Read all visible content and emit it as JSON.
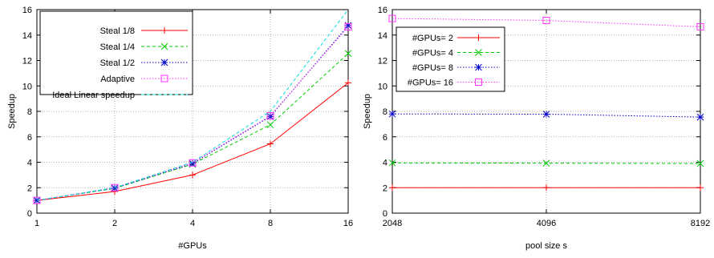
{
  "colors": {
    "red": "#ff0000",
    "green": "#00cc00",
    "blue": "#0000cc",
    "magenta": "#ff33ff",
    "cyan": "#00dddd",
    "grid": "#999999"
  },
  "chart_data": [
    {
      "type": "line",
      "xlabel": "#GPUs",
      "ylabel": "Speedup",
      "x_scale": "log2",
      "x": [
        1,
        2,
        4,
        8,
        16
      ],
      "xticks": [
        "1",
        "2",
        "4",
        "8",
        "16"
      ],
      "yticks": [
        "0",
        "2",
        "4",
        "6",
        "8",
        "10",
        "12",
        "14",
        "16"
      ],
      "ylim": [
        0,
        16
      ],
      "grid": true,
      "legend_position": "top-left",
      "series": [
        {
          "name": "Steal 1/8",
          "color": "#ff0000",
          "marker": "plus",
          "dash": "solid",
          "values": [
            1,
            1.7,
            3.0,
            5.45,
            10.25
          ]
        },
        {
          "name": "Steal 1/4",
          "color": "#00cc00",
          "marker": "x",
          "dash": "dash",
          "values": [
            1,
            1.95,
            3.85,
            6.95,
            12.55
          ]
        },
        {
          "name": "Steal 1/2",
          "color": "#0000cc",
          "marker": "star",
          "dash": "dot",
          "values": [
            1,
            1.97,
            3.9,
            7.6,
            14.75
          ]
        },
        {
          "name": "Adaptive",
          "color": "#ff33ff",
          "marker": "square",
          "dash": "dot",
          "values": [
            1,
            2.0,
            3.95,
            7.65,
            14.65
          ]
        },
        {
          "name": "Ideal Linear speedup",
          "color": "#00dddd",
          "marker": "none",
          "dash": "dash",
          "values": [
            1,
            2,
            4,
            8,
            16
          ]
        }
      ]
    },
    {
      "type": "line",
      "xlabel": "pool size s",
      "ylabel": "Speedup",
      "x_scale": "log2",
      "x": [
        2048,
        4096,
        8192
      ],
      "xticks": [
        "2048",
        "4096",
        "8192"
      ],
      "yticks": [
        "0",
        "2",
        "4",
        "6",
        "8",
        "10",
        "12",
        "14",
        "16"
      ],
      "ylim": [
        0,
        16
      ],
      "grid": true,
      "legend_position": "top-left",
      "series": [
        {
          "name": "#GPUs= 2",
          "color": "#ff0000",
          "marker": "plus",
          "dash": "solid",
          "values": [
            2.0,
            2.0,
            2.0
          ]
        },
        {
          "name": "#GPUs= 4",
          "color": "#00cc00",
          "marker": "x",
          "dash": "dash",
          "values": [
            3.95,
            3.93,
            3.9
          ]
        },
        {
          "name": "#GPUs= 8",
          "color": "#0000cc",
          "marker": "star",
          "dash": "dot",
          "values": [
            7.8,
            7.78,
            7.55
          ]
        },
        {
          "name": "#GPUs= 16",
          "color": "#ff33ff",
          "marker": "square",
          "dash": "dot",
          "values": [
            15.3,
            15.15,
            14.65
          ]
        }
      ]
    }
  ]
}
